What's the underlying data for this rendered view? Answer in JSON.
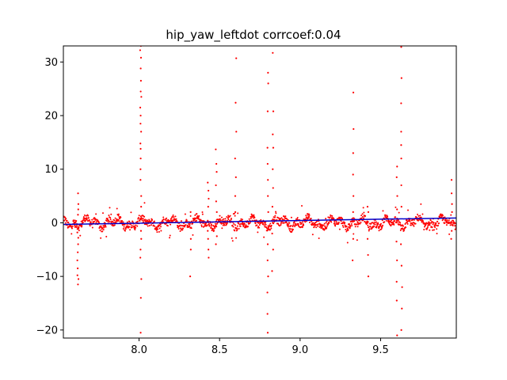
{
  "chart_data": {
    "type": "scatter",
    "title": "hip_yaw_leftdot corrcoef:0.04",
    "xlabel": "",
    "ylabel": "",
    "xlim": [
      7.53,
      9.97
    ],
    "ylim": [
      -21.5,
      33.0
    ],
    "xticks": [
      8.0,
      8.5,
      9.0,
      9.5
    ],
    "xtick_labels": [
      "8.0",
      "8.5",
      "9.0",
      "9.5"
    ],
    "yticks": [
      -20,
      -10,
      0,
      10,
      20,
      30
    ],
    "ytick_labels": [
      "−20",
      "−10",
      "0",
      "10",
      "20",
      "30"
    ],
    "grid": false,
    "scatter_color": "#ff0000",
    "fit_color": "#0000cc",
    "fit_line": {
      "x": [
        7.53,
        9.97
      ],
      "y": [
        -0.3,
        0.9
      ]
    },
    "spikes": [
      {
        "x": 7.62,
        "y": [
          -11.5,
          -10.5,
          -9.8,
          -8.5,
          -7,
          -5.5,
          -4,
          -2.8,
          -1.8,
          1.5,
          2.5,
          3.5,
          5.5
        ]
      },
      {
        "x": 8.01,
        "y": [
          -20.5,
          -14,
          -10.5,
          -6.5,
          -5,
          -3,
          -1.5,
          3,
          5,
          8,
          10,
          12,
          13.8,
          14.8,
          17,
          18.5,
          20,
          21.5,
          23.5,
          24.5,
          26.5,
          28.8,
          30.8,
          32.2,
          33
        ]
      },
      {
        "x": 8.32,
        "y": [
          -10,
          -5,
          -3,
          2
        ]
      },
      {
        "x": 8.43,
        "y": [
          -6.5,
          -5,
          -3,
          -1.5,
          3,
          4.5,
          6,
          7.5
        ]
      },
      {
        "x": 8.48,
        "y": [
          -4,
          -2.5,
          2,
          4,
          7,
          9.5,
          11,
          13.7
        ]
      },
      {
        "x": 8.6,
        "y": [
          2,
          5,
          8.5,
          12,
          17,
          22.4,
          30.7
        ]
      },
      {
        "x": 8.8,
        "y": [
          -20.5,
          -17,
          -13,
          -10,
          -7,
          -4,
          2,
          5,
          8,
          11,
          14,
          20.8,
          26,
          28
        ]
      },
      {
        "x": 8.83,
        "y": [
          -9,
          -5,
          -2,
          3,
          6.5,
          10,
          14,
          16.5,
          20.8,
          31.7
        ]
      },
      {
        "x": 9.33,
        "y": [
          -7,
          -3,
          2,
          5,
          9,
          13,
          17.5,
          24.3
        ]
      },
      {
        "x": 9.42,
        "y": [
          -10,
          -6,
          -3,
          2,
          3
        ]
      },
      {
        "x": 9.6,
        "y": [
          -21,
          -14.5,
          -11,
          -7,
          -3.5,
          2.5,
          5,
          8.5,
          10.5
        ]
      },
      {
        "x": 9.63,
        "y": [
          -20,
          -16,
          -12,
          -8,
          -4,
          3,
          7,
          12,
          14.5,
          17,
          22.3,
          27,
          32.8
        ]
      },
      {
        "x": 9.94,
        "y": [
          -3,
          -1.5,
          2,
          3.5,
          5.5,
          8
        ]
      }
    ]
  }
}
